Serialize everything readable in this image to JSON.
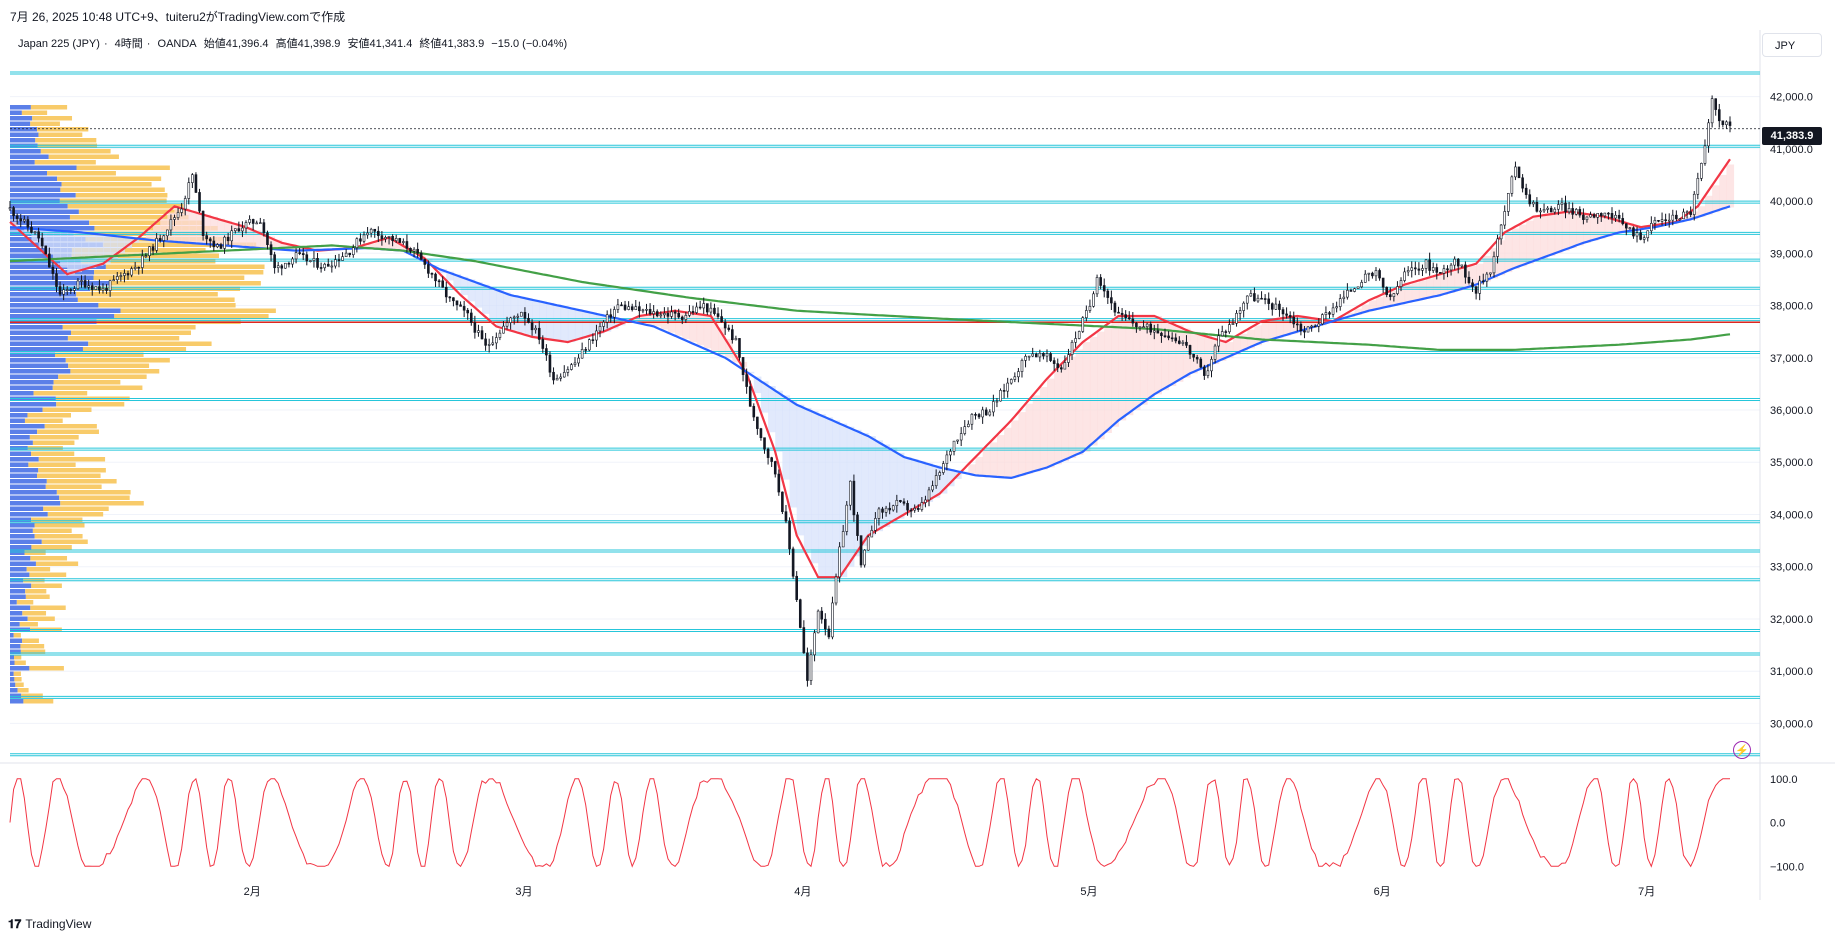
{
  "header": {
    "created_text": "7月 26, 2025 10:48 UTC+9、tuiteru2がTradingView.comで作成"
  },
  "legend": {
    "symbol": "Japan 225 (JPY)",
    "interval": "4時間",
    "source": "OANDA",
    "open": "始値41,396.4",
    "high": "高値41,398.9",
    "low": "安値41,341.4",
    "close": "終値41,383.9",
    "change": "−15.0 (−0.04%)"
  },
  "currency_button": "JPY",
  "last_price_label": "41,383.9",
  "watermark": "TradingView",
  "colors": {
    "candle": "#131722",
    "ema_fast": "#f23645",
    "ema_mid": "#2962ff",
    "ema_slow": "#43a047",
    "fill_bull": "#fcdcdc",
    "fill_bear": "#d7e2fb",
    "hline": "#26c6da",
    "redline": "#e0261f",
    "vp_up": "#5b7fe8",
    "vp_down": "#f7c55a",
    "oscillator": "#f23645"
  },
  "chart_data": {
    "type": "candlestick",
    "price_axis": {
      "ticks": [
        "42,000.0",
        "41,000.0",
        "40,000.0",
        "39,000.0",
        "38,000.0",
        "37,000.0",
        "36,000.0",
        "35,000.0",
        "34,000.0",
        "33,000.0",
        "32,000.0",
        "31,000.0",
        "30,000.0"
      ],
      "range": [
        29300,
        42700
      ]
    },
    "time_axis": {
      "ticks": [
        "2月",
        "3月",
        "4月",
        "5月",
        "6月",
        "7月"
      ]
    },
    "last_price": 41383.9,
    "horizontal_levels": [
      42450,
      41050,
      39980,
      39380,
      38870,
      38330,
      37730,
      37100,
      36200,
      35250,
      33860,
      33300,
      32750,
      31780,
      31330,
      30500,
      29400
    ],
    "red_level": 37680,
    "price_path": [
      [
        0,
        39850
      ],
      [
        8,
        39300
      ],
      [
        14,
        38200
      ],
      [
        20,
        38450
      ],
      [
        26,
        38300
      ],
      [
        30,
        38500
      ],
      [
        36,
        38800
      ],
      [
        42,
        39300
      ],
      [
        48,
        39900
      ],
      [
        51,
        40500
      ],
      [
        54,
        39400
      ],
      [
        58,
        39100
      ],
      [
        64,
        39500
      ],
      [
        70,
        39650
      ],
      [
        74,
        38700
      ],
      [
        80,
        38950
      ],
      [
        88,
        38750
      ],
      [
        95,
        39050
      ],
      [
        100,
        39450
      ],
      [
        106,
        39300
      ],
      [
        112,
        39100
      ],
      [
        118,
        38600
      ],
      [
        123,
        38100
      ],
      [
        128,
        37800
      ],
      [
        133,
        37200
      ],
      [
        138,
        37600
      ],
      [
        143,
        37900
      ],
      [
        148,
        37400
      ],
      [
        152,
        36600
      ],
      [
        158,
        36900
      ],
      [
        164,
        37500
      ],
      [
        170,
        38000
      ],
      [
        176,
        37900
      ],
      [
        182,
        37850
      ],
      [
        188,
        37800
      ],
      [
        194,
        38000
      ],
      [
        199,
        37700
      ],
      [
        203,
        37300
      ],
      [
        207,
        36100
      ],
      [
        211,
        35300
      ],
      [
        214,
        34800
      ],
      [
        217,
        33800
      ],
      [
        220,
        32400
      ],
      [
        223,
        30800
      ],
      [
        226,
        32200
      ],
      [
        229,
        31700
      ],
      [
        232,
        33300
      ],
      [
        235,
        34600
      ],
      [
        238,
        33000
      ],
      [
        242,
        34000
      ],
      [
        248,
        34200
      ],
      [
        254,
        34050
      ],
      [
        260,
        34800
      ],
      [
        264,
        35400
      ],
      [
        269,
        35900
      ],
      [
        274,
        36000
      ],
      [
        280,
        36600
      ],
      [
        285,
        37100
      ],
      [
        290,
        37000
      ],
      [
        294,
        36800
      ],
      [
        298,
        37400
      ],
      [
        302,
        38000
      ],
      [
        304,
        38600
      ],
      [
        306,
        38300
      ],
      [
        310,
        37800
      ],
      [
        316,
        37600
      ],
      [
        322,
        37500
      ],
      [
        328,
        37300
      ],
      [
        332,
        36900
      ],
      [
        334,
        36600
      ],
      [
        338,
        37400
      ],
      [
        342,
        37700
      ],
      [
        346,
        38200
      ],
      [
        350,
        38100
      ],
      [
        356,
        37900
      ],
      [
        362,
        37500
      ],
      [
        366,
        37700
      ],
      [
        372,
        38100
      ],
      [
        378,
        38500
      ],
      [
        382,
        38600
      ],
      [
        386,
        38100
      ],
      [
        390,
        38600
      ],
      [
        396,
        38800
      ],
      [
        400,
        38600
      ],
      [
        404,
        38900
      ],
      [
        410,
        38300
      ],
      [
        414,
        38700
      ],
      [
        418,
        39800
      ],
      [
        421,
        40700
      ],
      [
        424,
        40100
      ],
      [
        428,
        39800
      ],
      [
        434,
        39900
      ],
      [
        440,
        39700
      ],
      [
        446,
        39800
      ],
      [
        452,
        39500
      ],
      [
        456,
        39300
      ],
      [
        460,
        39600
      ],
      [
        466,
        39700
      ],
      [
        470,
        39800
      ],
      [
        474,
        41000
      ],
      [
        476,
        41900
      ],
      [
        478,
        41600
      ],
      [
        481,
        41383
      ]
    ],
    "series": [
      {
        "name": "",
        "points": [
          [
            0,
            39600
          ],
          [
            8,
            39100
          ],
          [
            16,
            38600
          ],
          [
            26,
            38800
          ],
          [
            36,
            39300
          ],
          [
            46,
            39900
          ],
          [
            56,
            39700
          ],
          [
            66,
            39500
          ],
          [
            76,
            39200
          ],
          [
            86,
            39050
          ],
          [
            96,
            39100
          ],
          [
            106,
            39300
          ],
          [
            116,
            38900
          ],
          [
            126,
            38200
          ],
          [
            136,
            37600
          ],
          [
            146,
            37400
          ],
          [
            156,
            37300
          ],
          [
            166,
            37500
          ],
          [
            176,
            37800
          ],
          [
            186,
            37900
          ],
          [
            196,
            37800
          ],
          [
            206,
            36700
          ],
          [
            214,
            35200
          ],
          [
            220,
            33600
          ],
          [
            226,
            32800
          ],
          [
            232,
            32800
          ],
          [
            240,
            33600
          ],
          [
            250,
            34000
          ],
          [
            260,
            34400
          ],
          [
            270,
            35100
          ],
          [
            280,
            35800
          ],
          [
            290,
            36600
          ],
          [
            300,
            37300
          ],
          [
            310,
            37800
          ],
          [
            320,
            37800
          ],
          [
            330,
            37500
          ],
          [
            340,
            37300
          ],
          [
            350,
            37700
          ],
          [
            360,
            37800
          ],
          [
            370,
            37700
          ],
          [
            380,
            38100
          ],
          [
            390,
            38400
          ],
          [
            400,
            38600
          ],
          [
            410,
            38800
          ],
          [
            418,
            39400
          ],
          [
            426,
            39700
          ],
          [
            436,
            39800
          ],
          [
            446,
            39700
          ],
          [
            456,
            39500
          ],
          [
            466,
            39600
          ],
          [
            472,
            39900
          ],
          [
            481,
            40800
          ]
        ]
      },
      {
        "name": "",
        "points": [
          [
            0,
            39500
          ],
          [
            20,
            39400
          ],
          [
            40,
            39250
          ],
          [
            60,
            39150
          ],
          [
            80,
            39050
          ],
          [
            100,
            39100
          ],
          [
            110,
            39050
          ],
          [
            120,
            38700
          ],
          [
            140,
            38200
          ],
          [
            160,
            37900
          ],
          [
            180,
            37600
          ],
          [
            200,
            37000
          ],
          [
            220,
            36100
          ],
          [
            240,
            35500
          ],
          [
            250,
            35100
          ],
          [
            260,
            34900
          ],
          [
            270,
            34750
          ],
          [
            280,
            34700
          ],
          [
            290,
            34900
          ],
          [
            300,
            35200
          ],
          [
            310,
            35800
          ],
          [
            320,
            36300
          ],
          [
            330,
            36700
          ],
          [
            340,
            37000
          ],
          [
            350,
            37300
          ],
          [
            360,
            37500
          ],
          [
            370,
            37700
          ],
          [
            380,
            37900
          ],
          [
            390,
            38050
          ],
          [
            400,
            38200
          ],
          [
            410,
            38400
          ],
          [
            420,
            38700
          ],
          [
            430,
            38950
          ],
          [
            440,
            39200
          ],
          [
            450,
            39400
          ],
          [
            460,
            39500
          ],
          [
            470,
            39650
          ],
          [
            481,
            39900
          ]
        ]
      },
      {
        "name": "",
        "points": [
          [
            0,
            38850
          ],
          [
            30,
            38950
          ],
          [
            60,
            39050
          ],
          [
            90,
            39150
          ],
          [
            110,
            39050
          ],
          [
            130,
            38850
          ],
          [
            160,
            38450
          ],
          [
            190,
            38150
          ],
          [
            220,
            37900
          ],
          [
            260,
            37750
          ],
          [
            290,
            37650
          ],
          [
            320,
            37550
          ],
          [
            350,
            37350
          ],
          [
            380,
            37250
          ],
          [
            400,
            37150
          ],
          [
            420,
            37150
          ],
          [
            450,
            37250
          ],
          [
            470,
            37350
          ],
          [
            481,
            37450
          ]
        ]
      }
    ],
    "oscillator": {
      "ticks": [
        "100.0",
        "0.0",
        "−100.0"
      ],
      "range": [
        -120,
        120
      ]
    }
  }
}
